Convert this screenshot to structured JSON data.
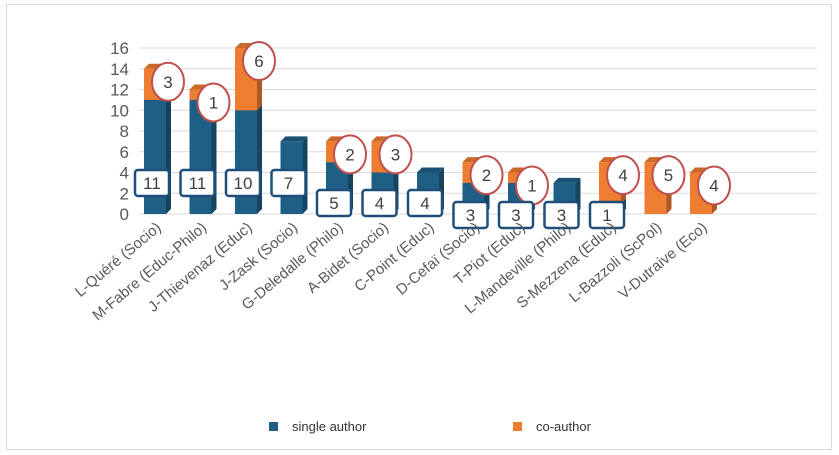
{
  "chart_data": {
    "type": "bar",
    "stacked": true,
    "categories": [
      "L-Quéré (Socio)",
      "M-Fabre (Educ-Philo)",
      "J-Thievenaz (Educ)",
      "J-Zask (Socio)",
      "G-Deledalle (Philo)",
      "A-Bidet (Socio)",
      "C-Point (Educ)",
      "D-Cefaï (Socio)",
      "T-Piot (Educ)",
      "L-Mandeville (Philo)",
      "S-Mezzena (Educ)",
      "L-Bazzoli (ScPol)",
      "V-Dutraive (Eco)"
    ],
    "series": [
      {
        "name": "single author",
        "color": "#1f5f86",
        "values": [
          11,
          11,
          10,
          7,
          5,
          4,
          4,
          3,
          3,
          3,
          1,
          0,
          0
        ]
      },
      {
        "name": "co-author",
        "color": "#ed7d31",
        "values": [
          3,
          1,
          6,
          0,
          2,
          3,
          0,
          2,
          1,
          0,
          4,
          5,
          4
        ]
      }
    ],
    "ylim": [
      0,
      16
    ],
    "yticks": [
      "0",
      "2",
      "4",
      "6",
      "8",
      "10",
      "12",
      "14",
      "16"
    ],
    "grid": true,
    "legend_position": "bottom",
    "single_labels": [
      "11",
      "11",
      "10",
      "7",
      "5",
      "4",
      "4",
      "3",
      "3",
      "3",
      "1",
      "",
      ""
    ],
    "co_labels": [
      "3",
      "1",
      "6",
      "",
      "2",
      "3",
      "",
      "2",
      "1",
      "",
      "4",
      "5",
      "4"
    ]
  }
}
